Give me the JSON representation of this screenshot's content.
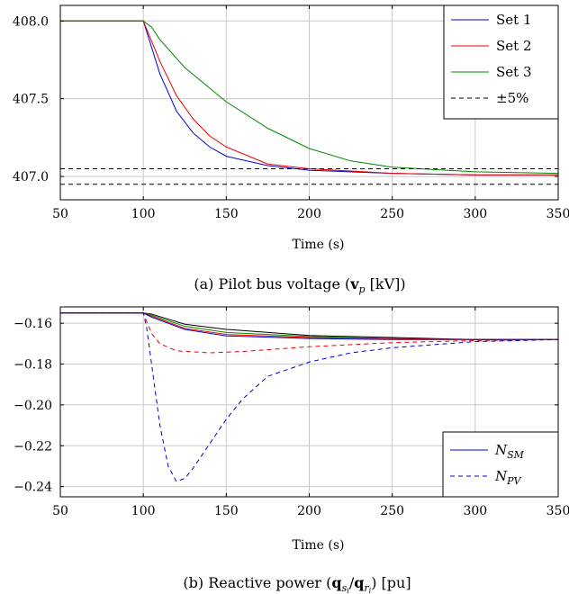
{
  "chart_data": [
    {
      "type": "line",
      "xlabel": "Time (s)",
      "caption_parts": [
        "(a) Pilot bus voltage (",
        "v",
        "p",
        " [kV])"
      ],
      "xlim": [
        50,
        350
      ],
      "ylim": [
        406.85,
        408.1
      ],
      "xticks": [
        50,
        100,
        150,
        200,
        250,
        300,
        350
      ],
      "xtick_labels": [
        "50",
        "100",
        "150",
        "200",
        "250",
        "300",
        "350"
      ],
      "yticks": [
        407.0,
        407.5,
        408.0
      ],
      "ytick_labels": [
        "407.0",
        "407.5",
        "408.0"
      ],
      "grid": true,
      "legend_placement": "top-right",
      "series": [
        {
          "name": "Set 1",
          "color": "#0000cc",
          "style": "solid",
          "x": [
            50,
            100,
            110,
            120,
            130,
            140,
            150,
            175,
            200,
            250,
            300,
            350
          ],
          "y": [
            408.0,
            408.0,
            407.66,
            407.42,
            407.28,
            407.19,
            407.13,
            407.07,
            407.04,
            407.02,
            407.01,
            407.01
          ]
        },
        {
          "name": "Set 2",
          "color": "#ee0000",
          "style": "solid",
          "x": [
            50,
            100,
            110,
            120,
            130,
            140,
            150,
            175,
            200,
            250,
            300,
            350
          ],
          "y": [
            408.0,
            408.0,
            407.74,
            407.52,
            407.37,
            407.26,
            407.19,
            407.08,
            407.05,
            407.02,
            407.01,
            407.01
          ]
        },
        {
          "name": "Set 3",
          "color": "#008800",
          "style": "solid",
          "x": [
            50,
            100,
            105,
            110,
            125,
            150,
            175,
            200,
            225,
            250,
            300,
            350
          ],
          "y": [
            408.0,
            408.0,
            407.96,
            407.88,
            407.7,
            407.48,
            407.31,
            407.18,
            407.1,
            407.06,
            407.03,
            407.02
          ]
        },
        {
          "name": "±5%",
          "color": "#000000",
          "style": "dashed",
          "x": [
            50,
            350
          ],
          "y": [
            407.05,
            407.05
          ]
        },
        {
          "name": "",
          "color": "#000000",
          "style": "dashed",
          "x": [
            50,
            350
          ],
          "y": [
            406.95,
            406.95
          ]
        }
      ]
    },
    {
      "type": "line",
      "xlabel": "Time (s)",
      "caption_parts": [
        "(b) Reactive power (",
        "q",
        "s",
        "i",
        "/",
        "q",
        "r",
        "i",
        ") [pu]"
      ],
      "xlim": [
        50,
        350
      ],
      "ylim": [
        -0.245,
        -0.152
      ],
      "xticks": [
        50,
        100,
        150,
        200,
        250,
        300,
        350
      ],
      "xtick_labels": [
        "50",
        "100",
        "150",
        "200",
        "250",
        "300",
        "350"
      ],
      "yticks": [
        -0.16,
        -0.18,
        -0.2,
        -0.22,
        -0.24
      ],
      "ytick_labels": [
        "−0.16",
        "−0.18",
        "−0.20",
        "−0.22",
        "−0.24"
      ],
      "grid": true,
      "legend_placement": "bottom-right",
      "legend": [
        {
          "label": "N",
          "sub": "SM",
          "color": "#0000cc",
          "style": "solid"
        },
        {
          "label": "N",
          "sub": "PV",
          "color": "#0000cc",
          "style": "dashed"
        }
      ],
      "series": [
        {
          "color": "#000000",
          "style": "solid",
          "x": [
            50,
            100,
            105,
            125,
            150,
            200,
            250,
            300,
            350
          ],
          "y": [
            -0.155,
            -0.155,
            -0.1555,
            -0.1605,
            -0.163,
            -0.166,
            -0.167,
            -0.168,
            -0.168
          ]
        },
        {
          "color": "#008800",
          "style": "solid",
          "x": [
            50,
            100,
            105,
            125,
            150,
            200,
            250,
            300,
            350
          ],
          "y": [
            -0.155,
            -0.155,
            -0.156,
            -0.1615,
            -0.1645,
            -0.1665,
            -0.1675,
            -0.168,
            -0.168
          ]
        },
        {
          "color": "#ee0000",
          "style": "solid",
          "x": [
            50,
            100,
            105,
            125,
            150,
            200,
            250,
            300,
            350
          ],
          "y": [
            -0.155,
            -0.155,
            -0.1565,
            -0.1625,
            -0.1655,
            -0.167,
            -0.1675,
            -0.168,
            -0.168
          ]
        },
        {
          "color": "#0000cc",
          "style": "solid",
          "x": [
            50,
            100,
            105,
            125,
            150,
            200,
            250,
            300,
            350
          ],
          "y": [
            -0.155,
            -0.155,
            -0.157,
            -0.163,
            -0.1662,
            -0.1675,
            -0.168,
            -0.168,
            -0.168
          ]
        },
        {
          "color": "#ee0000",
          "style": "dashed",
          "x": [
            50,
            100,
            102,
            105,
            110,
            120,
            140,
            160,
            200,
            250,
            300,
            350
          ],
          "y": [
            -0.155,
            -0.155,
            -0.159,
            -0.165,
            -0.17,
            -0.1735,
            -0.1745,
            -0.1738,
            -0.1715,
            -0.1695,
            -0.1685,
            -0.168
          ]
        },
        {
          "color": "#0000cc",
          "style": "dashed",
          "x": [
            50,
            100,
            102,
            105,
            110,
            115,
            120,
            125,
            130,
            140,
            150,
            160,
            175,
            200,
            225,
            250,
            300,
            350
          ],
          "y": [
            -0.155,
            -0.155,
            -0.162,
            -0.18,
            -0.21,
            -0.23,
            -0.2375,
            -0.236,
            -0.231,
            -0.219,
            -0.207,
            -0.197,
            -0.186,
            -0.179,
            -0.1745,
            -0.172,
            -0.169,
            -0.168
          ]
        }
      ]
    }
  ]
}
